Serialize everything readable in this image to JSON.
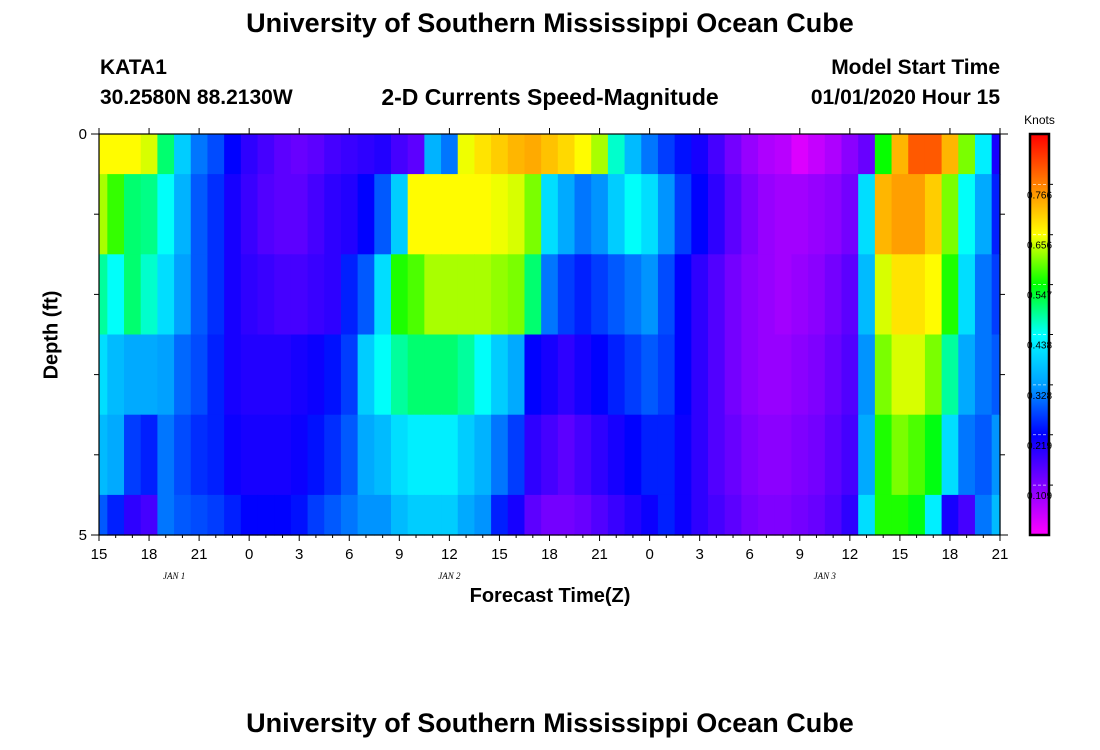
{
  "header": {
    "title_top": "University of Southern Mississippi Ocean Cube",
    "title_bottom": "University of Southern Mississippi Ocean Cube",
    "station": "KATA1",
    "location": "30.2580N 88.2130W",
    "subtitle": "2-D Currents Speed-Magnitude",
    "model_start_label": "Model Start Time",
    "model_start_value": "01/01/2020 Hour 15"
  },
  "chart_data": {
    "type": "heatmap",
    "title": "2-D Currents Speed-Magnitude",
    "xlabel": "Forecast Time(Z)",
    "ylabel": "Depth (ft)",
    "x_hours": [
      0,
      1,
      2,
      3,
      4,
      5,
      6,
      7,
      8,
      9,
      10,
      11,
      12,
      13,
      14,
      15,
      16,
      17,
      18,
      19,
      20,
      21,
      22,
      23,
      24,
      25,
      26,
      27,
      28,
      29,
      30,
      31,
      32,
      33,
      34,
      35,
      36,
      37,
      38,
      39,
      40,
      41,
      42,
      43,
      44,
      45,
      46,
      47,
      48,
      49,
      50,
      51,
      52,
      53,
      54
    ],
    "x_range": [
      0,
      54
    ],
    "y_range": [
      0,
      5
    ],
    "depth_bands": [
      "0.0-0.5",
      "0.5-1.5",
      "1.5-2.5",
      "2.5-3.5",
      "3.5-4.5",
      "4.5-5.0"
    ],
    "x_tick_labels": [
      "15",
      "18",
      "21",
      "0",
      "3",
      "6",
      "9",
      "12",
      "15",
      "18",
      "21",
      "0",
      "3",
      "6",
      "9",
      "12",
      "15",
      "18",
      "21"
    ],
    "y_tick_labels": [
      "0",
      "5"
    ],
    "date_labels": [
      {
        "text": "JAN 1",
        "hour": 4.5
      },
      {
        "text": "JAN 2",
        "hour": 21
      },
      {
        "text": "JAN 3",
        "hour": 43.5
      }
    ],
    "colorbar": {
      "title": "Knots",
      "min": 0.0,
      "max": 0.876,
      "tick_values": [
        0.109,
        0.219,
        0.328,
        0.438,
        0.547,
        0.656,
        0.766
      ],
      "tick_labels": [
        "0.109",
        "0.219",
        "0.328",
        "0.438",
        "0.547",
        "0.656",
        "0.766"
      ],
      "colormap": [
        "#ff00ff",
        "#8000ff",
        "#0000ff",
        "#00a0ff",
        "#00ffff",
        "#00ff00",
        "#ffff00",
        "#ff8000",
        "#ff0000"
      ]
    },
    "values": [
      [
        0.66,
        0.66,
        0.66,
        0.64,
        0.5,
        0.38,
        0.3,
        0.27,
        0.22,
        0.18,
        0.16,
        0.14,
        0.13,
        0.14,
        0.16,
        0.17,
        0.18,
        0.19,
        0.16,
        0.14,
        0.35,
        0.3,
        0.65,
        0.68,
        0.7,
        0.72,
        0.73,
        0.71,
        0.69,
        0.66,
        0.62,
        0.46,
        0.36,
        0.3,
        0.26,
        0.23,
        0.2,
        0.16,
        0.12,
        0.09,
        0.07,
        0.06,
        0.03,
        0.05,
        0.07,
        0.1,
        0.13,
        0.55,
        0.72,
        0.8,
        0.8,
        0.72,
        0.6,
        0.42,
        0.2
      ],
      [
        0.62,
        0.57,
        0.5,
        0.49,
        0.44,
        0.35,
        0.28,
        0.25,
        0.2,
        0.17,
        0.15,
        0.14,
        0.14,
        0.16,
        0.18,
        0.19,
        0.22,
        0.28,
        0.38,
        0.66,
        0.66,
        0.66,
        0.66,
        0.66,
        0.65,
        0.64,
        0.6,
        0.4,
        0.34,
        0.3,
        0.32,
        0.38,
        0.44,
        0.4,
        0.32,
        0.26,
        0.22,
        0.18,
        0.14,
        0.11,
        0.09,
        0.08,
        0.08,
        0.09,
        0.1,
        0.12,
        0.4,
        0.72,
        0.74,
        0.74,
        0.7,
        0.6,
        0.44,
        0.34,
        0.24
      ],
      [
        0.48,
        0.44,
        0.5,
        0.46,
        0.4,
        0.33,
        0.28,
        0.25,
        0.2,
        0.18,
        0.17,
        0.16,
        0.16,
        0.17,
        0.18,
        0.24,
        0.28,
        0.4,
        0.56,
        0.58,
        0.62,
        0.62,
        0.62,
        0.62,
        0.61,
        0.6,
        0.5,
        0.3,
        0.26,
        0.24,
        0.26,
        0.28,
        0.3,
        0.32,
        0.27,
        0.22,
        0.18,
        0.15,
        0.12,
        0.1,
        0.09,
        0.08,
        0.09,
        0.1,
        0.12,
        0.14,
        0.36,
        0.64,
        0.68,
        0.68,
        0.66,
        0.56,
        0.4,
        0.3,
        0.26
      ],
      [
        0.4,
        0.36,
        0.34,
        0.34,
        0.33,
        0.29,
        0.27,
        0.24,
        0.2,
        0.19,
        0.19,
        0.19,
        0.2,
        0.21,
        0.23,
        0.26,
        0.38,
        0.44,
        0.48,
        0.5,
        0.5,
        0.5,
        0.48,
        0.44,
        0.38,
        0.34,
        0.22,
        0.2,
        0.18,
        0.2,
        0.22,
        0.24,
        0.26,
        0.28,
        0.26,
        0.22,
        0.18,
        0.15,
        0.12,
        0.1,
        0.09,
        0.09,
        0.1,
        0.11,
        0.13,
        0.15,
        0.32,
        0.6,
        0.64,
        0.64,
        0.6,
        0.48,
        0.34,
        0.3,
        0.28
      ],
      [
        0.36,
        0.34,
        0.26,
        0.24,
        0.3,
        0.27,
        0.25,
        0.24,
        0.21,
        0.2,
        0.2,
        0.2,
        0.21,
        0.23,
        0.25,
        0.28,
        0.34,
        0.36,
        0.4,
        0.42,
        0.42,
        0.42,
        0.38,
        0.35,
        0.3,
        0.26,
        0.18,
        0.16,
        0.14,
        0.16,
        0.18,
        0.2,
        0.22,
        0.24,
        0.24,
        0.21,
        0.18,
        0.15,
        0.13,
        0.11,
        0.1,
        0.1,
        0.11,
        0.12,
        0.14,
        0.16,
        0.34,
        0.56,
        0.6,
        0.58,
        0.54,
        0.4,
        0.3,
        0.28,
        0.32
      ],
      [
        0.28,
        0.24,
        0.18,
        0.16,
        0.3,
        0.28,
        0.27,
        0.26,
        0.24,
        0.22,
        0.22,
        0.22,
        0.23,
        0.26,
        0.28,
        0.3,
        0.32,
        0.32,
        0.36,
        0.38,
        0.38,
        0.38,
        0.34,
        0.32,
        0.24,
        0.2,
        0.14,
        0.12,
        0.12,
        0.13,
        0.15,
        0.17,
        0.19,
        0.21,
        0.24,
        0.21,
        0.18,
        0.16,
        0.14,
        0.12,
        0.11,
        0.11,
        0.12,
        0.13,
        0.15,
        0.18,
        0.4,
        0.56,
        0.56,
        0.54,
        0.42,
        0.2,
        0.16,
        0.3,
        0.36
      ]
    ]
  }
}
